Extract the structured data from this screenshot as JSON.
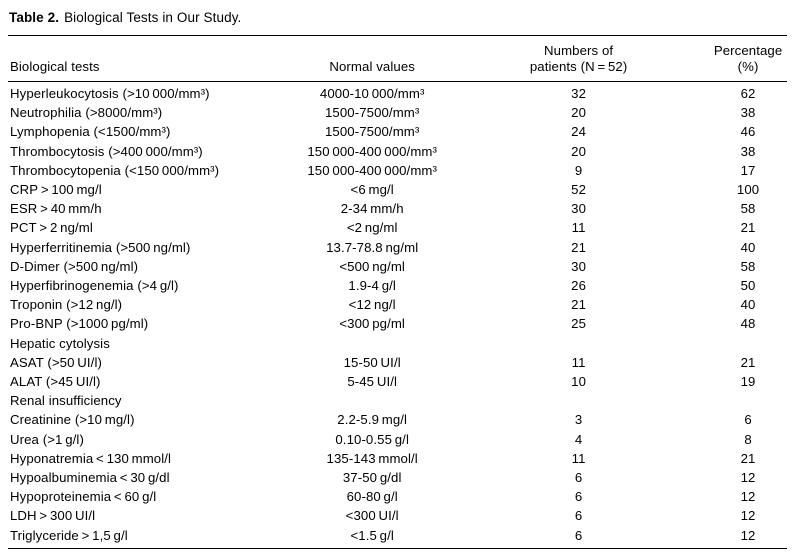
{
  "caption": {
    "label": "Table 2.",
    "text": "Biological Tests in Our Study."
  },
  "table": {
    "header": {
      "col1": "Biological tests",
      "col2": "Normal values",
      "col3_line1": "Numbers of",
      "col3_line2": "patients (N = 52)",
      "col4_line1": "Percentage",
      "col4_line2": "(%)"
    },
    "rows": [
      {
        "test": "Hyperleukocytosis (>10 000/mm³)",
        "normal": "4000-10 000/mm³",
        "n": "32",
        "pct": "62"
      },
      {
        "test": "Neutrophilia (>8000/mm³)",
        "normal": "1500-7500/mm³",
        "n": "20",
        "pct": "38"
      },
      {
        "test": "Lymphopenia (<1500/mm³)",
        "normal": "1500-7500/mm³",
        "n": "24",
        "pct": "46"
      },
      {
        "test": "Thrombocytosis (>400 000/mm³)",
        "normal": "150 000-400 000/mm³",
        "n": "20",
        "pct": "38"
      },
      {
        "test": "Thrombocytopenia (<150 000/mm³)",
        "normal": "150 000-400 000/mm³",
        "n": "9",
        "pct": "17"
      },
      {
        "test": "CRP > 100 mg/l",
        "normal": "<6 mg/l",
        "n": "52",
        "pct": "100"
      },
      {
        "test": "ESR > 40 mm/h",
        "normal": "2-34 mm/h",
        "n": "30",
        "pct": "58"
      },
      {
        "test": "PCT > 2 ng/ml",
        "normal": "<2 ng/ml",
        "n": "11",
        "pct": "21"
      },
      {
        "test": "Hyperferritinemia (>500 ng/ml)",
        "normal": "13.7-78.8 ng/ml",
        "n": "21",
        "pct": "40"
      },
      {
        "test": "D-Dimer (>500 ng/ml)",
        "normal": "<500 ng/ml",
        "n": "30",
        "pct": "58"
      },
      {
        "test": "Hyperfibrinogenemia (>4 g/l)",
        "normal": "1.9-4 g/l",
        "n": "26",
        "pct": "50"
      },
      {
        "test": "Troponin (>12 ng/l)",
        "normal": "<12 ng/l",
        "n": "21",
        "pct": "40"
      },
      {
        "test": "Pro-BNP (>1000 pg/ml)",
        "normal": "<300 pg/ml",
        "n": "25",
        "pct": "48"
      },
      {
        "test": "Hepatic cytolysis",
        "normal": "",
        "n": "",
        "pct": "",
        "section": true
      },
      {
        "test": "ASAT (>50 UI/l)",
        "normal": "15-50 UI/l",
        "n": "11",
        "pct": "21"
      },
      {
        "test": "ALAT (>45 UI/l)",
        "normal": "5-45 UI/l",
        "n": "10",
        "pct": "19"
      },
      {
        "test": "Renal insufficiency",
        "normal": "",
        "n": "",
        "pct": "",
        "section": true
      },
      {
        "test": "Creatinine (>10 mg/l)",
        "normal": "2.2-5.9 mg/l",
        "n": "3",
        "pct": "6"
      },
      {
        "test": "Urea (>1 g/l)",
        "normal": "0.10-0.55 g/l",
        "n": "4",
        "pct": "8"
      },
      {
        "test": "Hyponatremia < 130 mmol/l",
        "normal": "135-143 mmol/l",
        "n": "11",
        "pct": "21"
      },
      {
        "test": "Hypoalbuminemia < 30 g/dl",
        "normal": "37-50 g/dl",
        "n": "6",
        "pct": "12"
      },
      {
        "test": "Hypoproteinemia < 60 g/l",
        "normal": "60-80 g/l",
        "n": "6",
        "pct": "12"
      },
      {
        "test": "LDH > 300 UI/l",
        "normal": "<300 UI/l",
        "n": "6",
        "pct": "12"
      },
      {
        "test": "Triglyceride > 1,5 g/l",
        "normal": "<1.5 g/l",
        "n": "6",
        "pct": "12"
      }
    ]
  }
}
